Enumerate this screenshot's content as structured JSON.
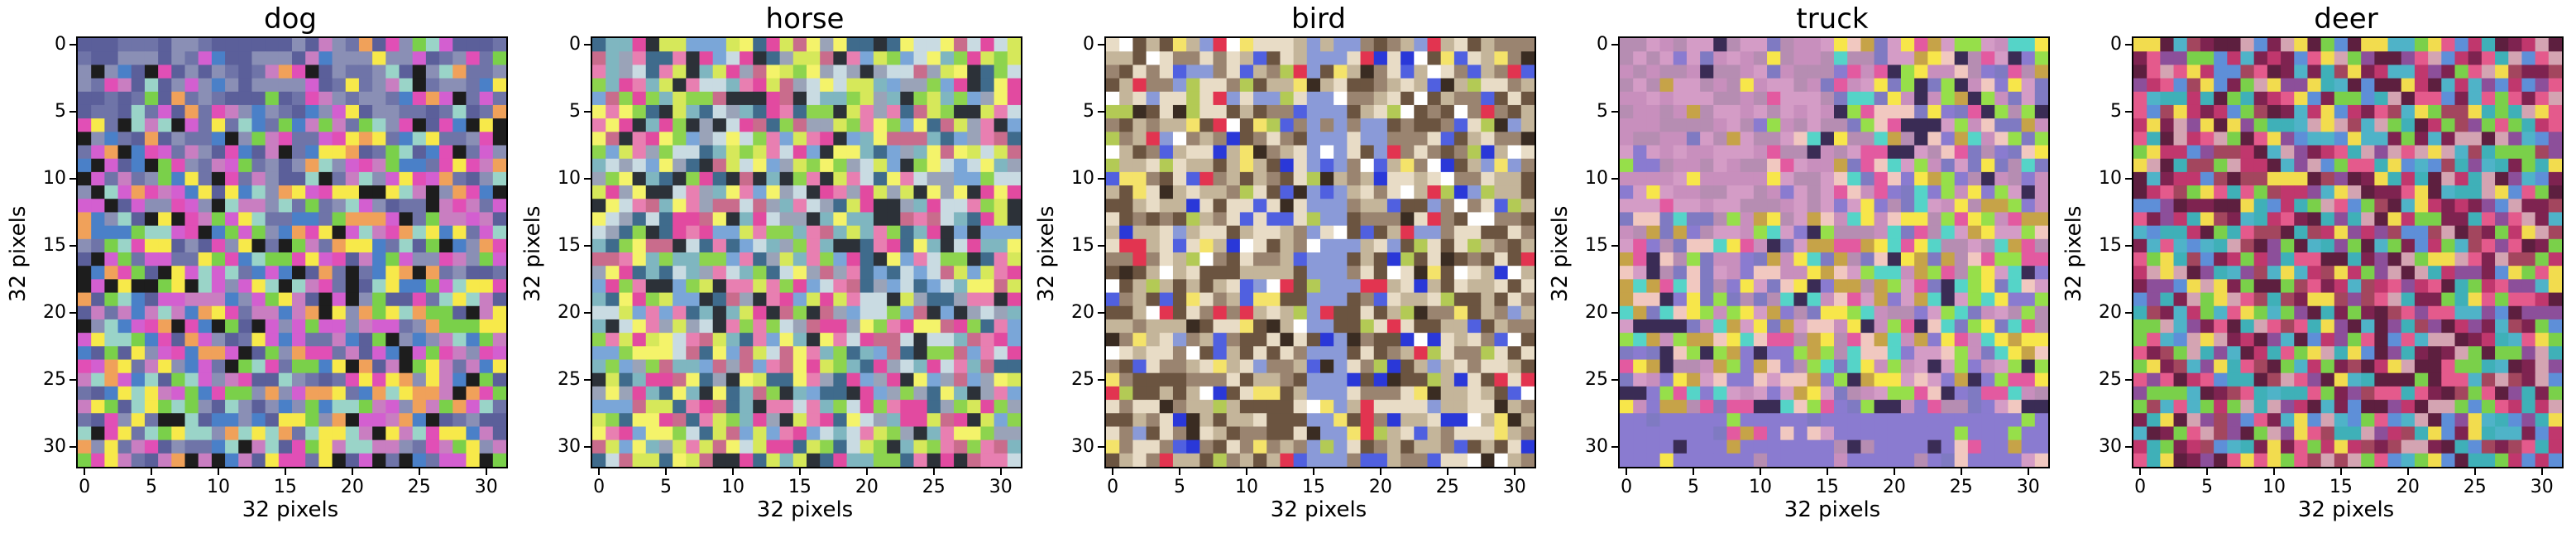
{
  "panels": [
    {
      "title": "dog",
      "palette": [
        "#5b5f9a",
        "#6f74a8",
        "#8a8fb5",
        "#9ad4c8",
        "#e14fb6",
        "#d35fd0",
        "#7ad04a",
        "#f7e94a",
        "#1d1d1d",
        "#f0a15a",
        "#c97ec1",
        "#4a80c8"
      ]
    },
    {
      "title": "horse",
      "palette": [
        "#9aa3b8",
        "#7fb6c0",
        "#c9dbe2",
        "#e87fb1",
        "#c96c8c",
        "#8dd44e",
        "#e24aa0",
        "#f4f36a",
        "#2c3138",
        "#7aa6d8",
        "#d6e85a",
        "#3f6b8c"
      ]
    },
    {
      "title": "bird",
      "palette": [
        "#6b5440",
        "#9a8470",
        "#c4b59a",
        "#e8dcc6",
        "#3a2c22",
        "#2a38d8",
        "#5060e0",
        "#f4e36a",
        "#b3ca55",
        "#e23450",
        "#8a9ad8",
        "#ffffff"
      ]
    },
    {
      "title": "truck",
      "palette": [
        "#d49cc6",
        "#c88fbd",
        "#b68db2",
        "#8a7bd0",
        "#7f7ac2",
        "#96df4a",
        "#f7e64a",
        "#55d4c8",
        "#e35aa0",
        "#f1c8c0",
        "#3a2c55",
        "#c6a348"
      ]
    },
    {
      "title": "deer",
      "palette": [
        "#7e2350",
        "#c0376d",
        "#e45a8c",
        "#a3465e",
        "#5e8fd8",
        "#7ad04a",
        "#4fb3c8",
        "#f2dc4e",
        "#8c4f9a",
        "#d4a4b2",
        "#3fb0b8",
        "#5d1f3f"
      ]
    }
  ],
  "axis": {
    "xlabel": "32 pixels",
    "ylabel": "32 pixels",
    "xticks": [
      "0",
      "5",
      "10",
      "15",
      "20",
      "25",
      "30"
    ],
    "yticks": [
      "0",
      "5",
      "10",
      "15",
      "20",
      "25",
      "30"
    ]
  }
}
